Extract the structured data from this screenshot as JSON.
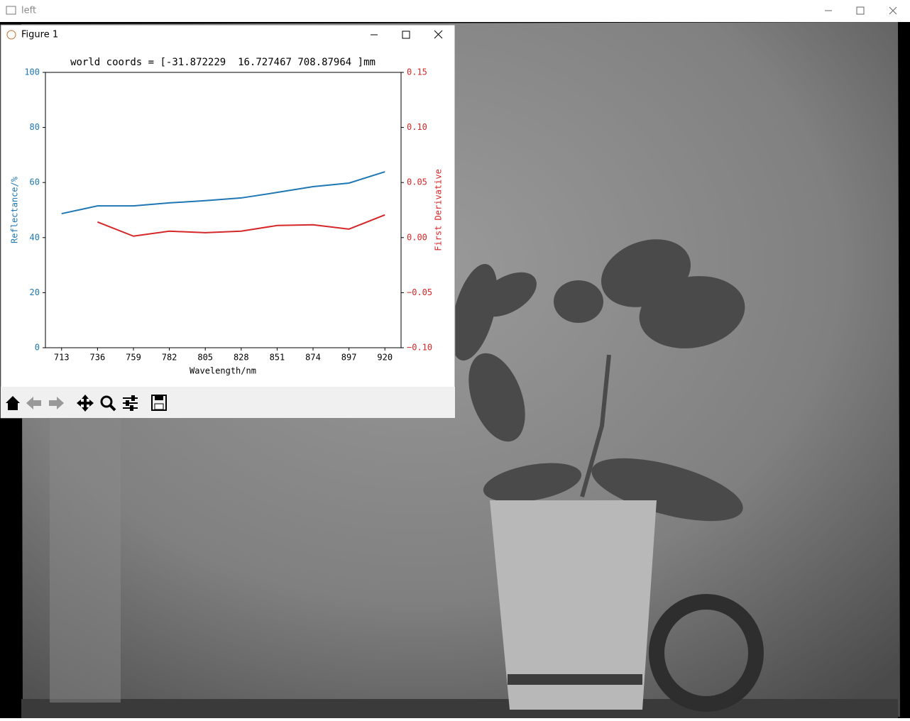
{
  "window": {
    "title": "left"
  },
  "figure": {
    "title": "Figure 1"
  },
  "chart_data": {
    "type": "line",
    "title": "world coords = [-31.872229  16.727467 708.87964 ]mm",
    "xlabel": "Wavelength/nm",
    "ylabel": "Reflectance/%",
    "y2label": "First Derivative",
    "categories": [
      "713",
      "736",
      "759",
      "782",
      "805",
      "828",
      "851",
      "874",
      "897",
      "920"
    ],
    "series": [
      {
        "color": "#1f77b4",
        "values": [
          48.7,
          51.5,
          51.5,
          52.6,
          53.4,
          54.4,
          56.4,
          58.5,
          59.8,
          63.9
        ]
      },
      {
        "color": "#d62728",
        "axis": "y2",
        "values": [
          null,
          0.0142,
          0.0013,
          0.0058,
          0.0045,
          0.0058,
          0.011,
          0.0116,
          0.0077,
          0.0206
        ]
      }
    ],
    "ylim": [
      0,
      100
    ],
    "yticks": [
      0,
      20,
      40,
      60,
      80,
      100
    ],
    "ycolor": "#1f77b4",
    "y2lim": [
      -0.1,
      0.15
    ],
    "y2ticks": [
      {
        "value": -0.1,
        "label": "−0.10"
      },
      {
        "value": -0.05,
        "label": "−0.05"
      },
      {
        "value": 0,
        "label": "0.00"
      },
      0.05,
      {
        "value": 0.1,
        "label": "0.10"
      },
      0.15
    ],
    "y2color": "#d62728",
    "grid": false
  }
}
